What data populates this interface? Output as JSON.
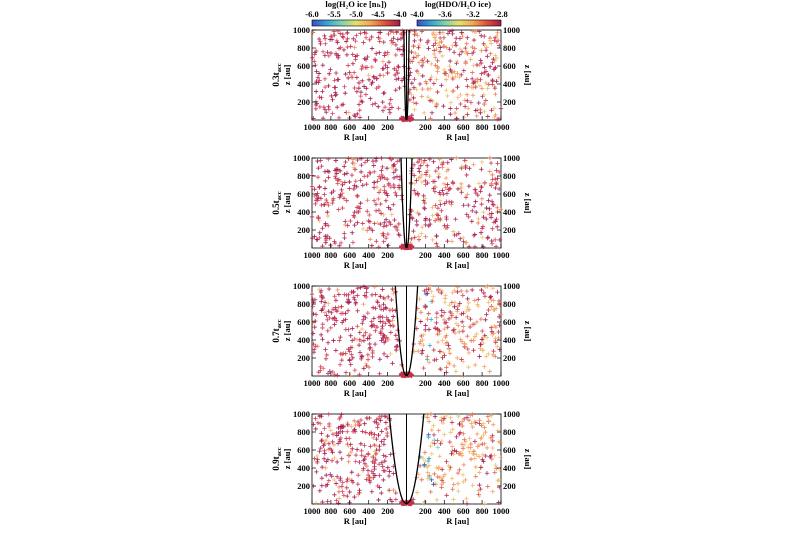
{
  "chart_data": {
    "type": "scatter",
    "colorbars": [
      {
        "name": "h2o-colorbar",
        "title": "log(H₂O ice [nₕ])",
        "ticks": [
          "-6.0",
          "-5.5",
          "-5.0",
          "-4.5",
          "-4.0"
        ],
        "range": [
          -6.0,
          -4.0
        ],
        "colors": [
          "#3b4cc0",
          "#35a2d6",
          "#7fd1ae",
          "#e4e06a",
          "#f4a553",
          "#dc4f3b",
          "#9e1a4b"
        ]
      },
      {
        "name": "hdo-colorbar",
        "title": "log(HDO/H₂O ice)",
        "ticks": [
          "-4.0",
          "-3.6",
          "-3.2",
          "-2.8"
        ],
        "range": [
          -4.0,
          -2.8
        ],
        "colors": [
          "#3b4cc0",
          "#35a2d6",
          "#7fd1ae",
          "#e4e06a",
          "#f4a553",
          "#dc4f3b",
          "#9e1a4b"
        ]
      }
    ],
    "x_left": {
      "label": "R [au]",
      "ticks": [
        "1000",
        "800",
        "600",
        "400",
        "200"
      ],
      "range": [
        1000,
        0
      ]
    },
    "x_right": {
      "label": "R [au]",
      "ticks": [
        "200",
        "400",
        "600",
        "800",
        "1000"
      ],
      "range": [
        0,
        1000
      ]
    },
    "y": {
      "label": "z [au]",
      "ticks": [
        "200",
        "400",
        "600",
        "800",
        "1000"
      ],
      "range": [
        0,
        1000
      ]
    },
    "panels": [
      {
        "label": "0.3t",
        "label_sub": "acc",
        "cavity_halfwidth_top": 25,
        "left_color_mix": [
          0.92,
          0.08
        ],
        "right_color_mix": [
          0.55,
          0.45
        ],
        "right_cool_fraction": 0.0
      },
      {
        "label": "0.5t",
        "label_sub": "acc",
        "cavity_halfwidth_top": 55,
        "left_color_mix": [
          0.9,
          0.1
        ],
        "right_color_mix": [
          0.7,
          0.3
        ],
        "right_cool_fraction": 0.0
      },
      {
        "label": "0.7t",
        "label_sub": "acc",
        "cavity_halfwidth_top": 115,
        "left_color_mix": [
          0.88,
          0.12
        ],
        "right_color_mix": [
          0.35,
          0.65
        ],
        "right_cool_fraction": 0.12
      },
      {
        "label": "0.9t",
        "label_sub": "acc",
        "cavity_halfwidth_top": 180,
        "left_color_mix": [
          0.85,
          0.15
        ],
        "right_color_mix": [
          0.25,
          0.75
        ],
        "right_cool_fraction": 0.25
      }
    ]
  }
}
